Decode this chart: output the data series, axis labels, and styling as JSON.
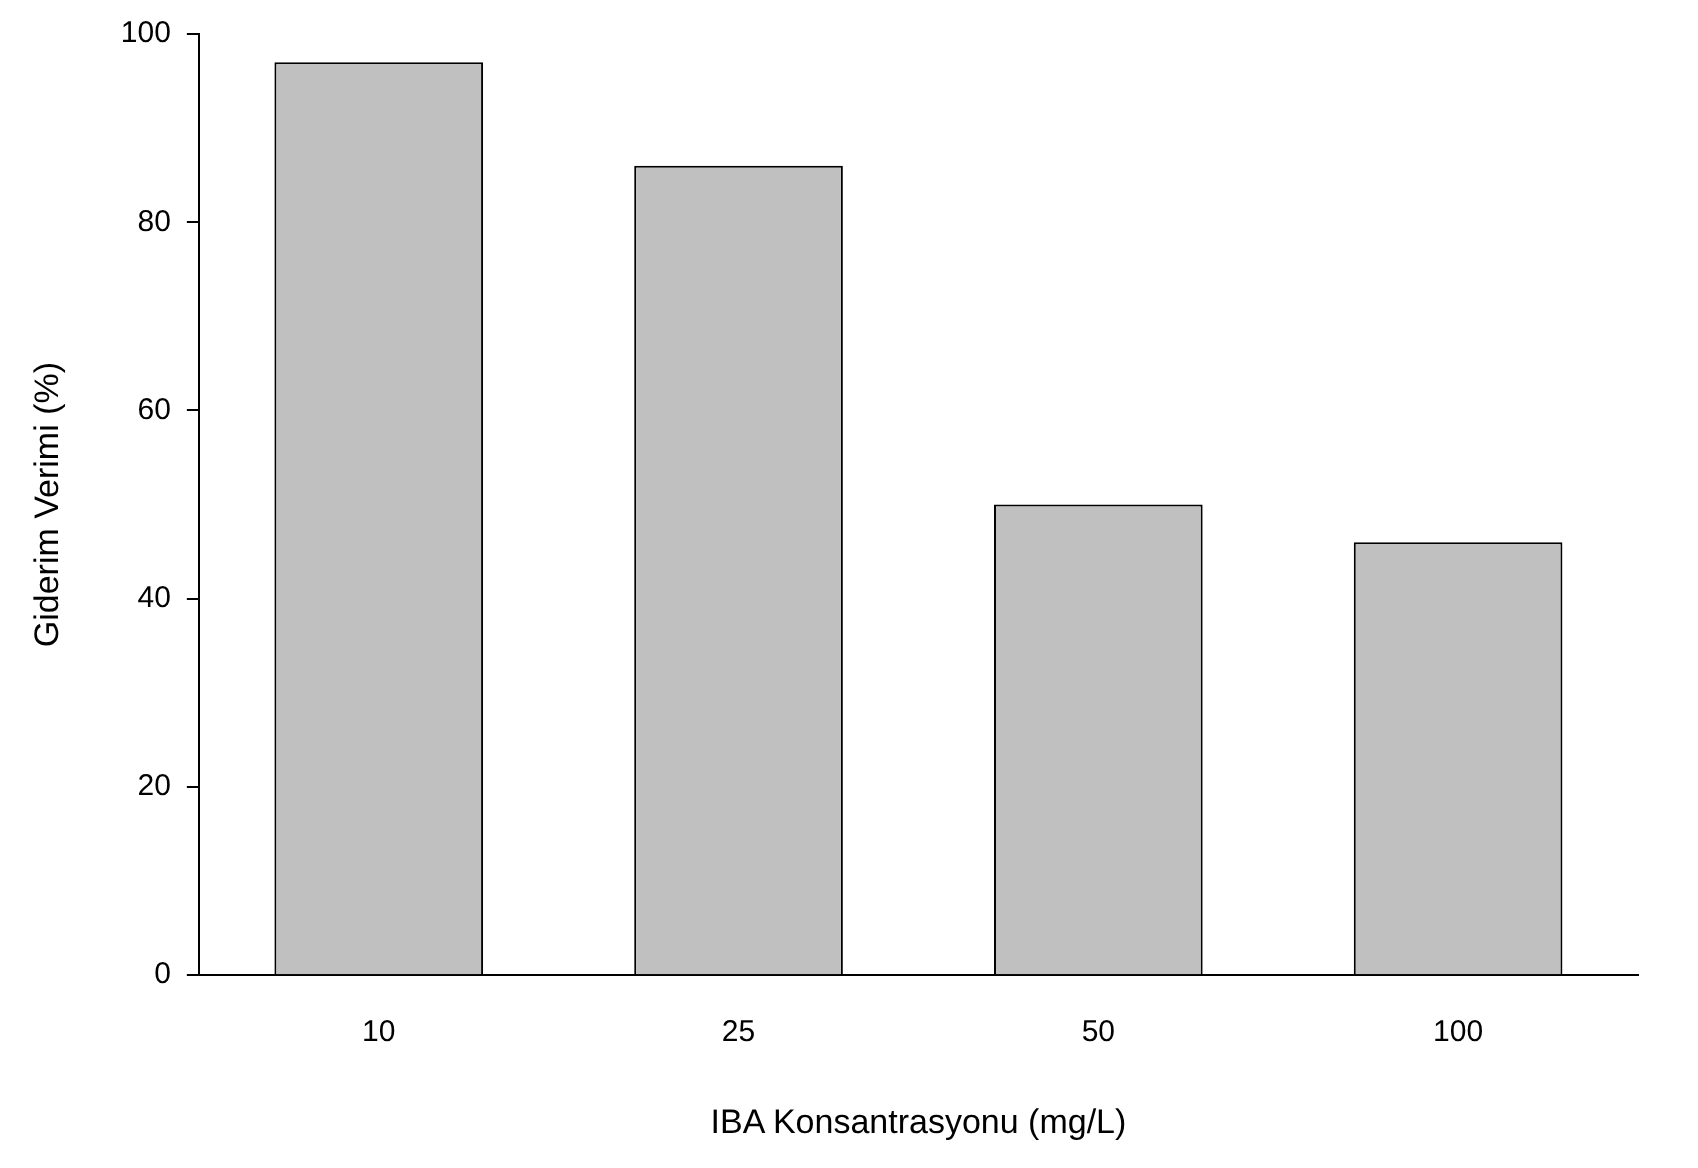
{
  "chart_data": {
    "type": "bar",
    "xlabel": "IBA Konsantrasyonu (mg/L)",
    "ylabel": "Giderim Verimi (%)",
    "categories": [
      "10",
      "25",
      "50",
      "100"
    ],
    "values": [
      97,
      86,
      50,
      46
    ],
    "color": "#c0c0c0",
    "ylim": [
      0,
      100
    ],
    "yticks": [
      0,
      20,
      40,
      60,
      80,
      100
    ]
  }
}
